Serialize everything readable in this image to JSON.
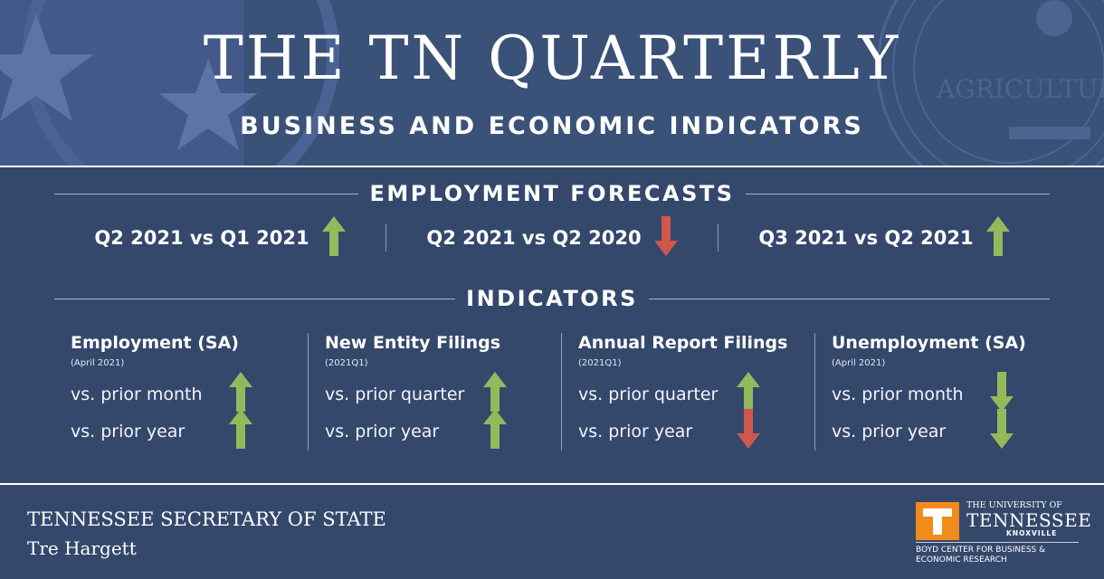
{
  "header": {
    "title": "THE TN QUARTERLY",
    "subtitle": "BUSINESS AND ECONOMIC INDICATORS",
    "seal_text": "AGRICULTURE"
  },
  "forecasts": {
    "heading": "EMPLOYMENT FORECASTS",
    "items": [
      {
        "label": "Q2 2021 vs Q1 2021",
        "direction": "up"
      },
      {
        "label": "Q2 2021 vs Q2 2020",
        "direction": "down"
      },
      {
        "label": "Q3 2021 vs Q2 2021",
        "direction": "up"
      }
    ]
  },
  "indicators": {
    "heading": "INDICATORS",
    "items": [
      {
        "title": "Employment (SA)",
        "date": "(April 2021)",
        "rows": [
          {
            "label": "vs. prior month",
            "direction": "up"
          },
          {
            "label": "vs. prior year",
            "direction": "up"
          }
        ]
      },
      {
        "title": "New Entity Filings",
        "date": "(2021Q1)",
        "rows": [
          {
            "label": "vs. prior quarter",
            "direction": "up"
          },
          {
            "label": "vs. prior year",
            "direction": "up"
          }
        ]
      },
      {
        "title": "Annual Report Filings",
        "date": "(2021Q1)",
        "rows": [
          {
            "label": "vs. prior quarter",
            "direction": "up"
          },
          {
            "label": "vs. prior year",
            "direction": "down"
          }
        ]
      },
      {
        "title": "Unemployment (SA)",
        "date": "(April 2021)",
        "rows": [
          {
            "label": "vs. prior month",
            "direction": "down"
          },
          {
            "label": "vs. prior year",
            "direction": "down"
          }
        ]
      }
    ]
  },
  "footer": {
    "office": "TENNESSEE SECRETARY OF STATE",
    "name": "Tre Hargett",
    "university_line1": "THE UNIVERSITY OF",
    "university_line2": "TENNESSEE",
    "university_line3": "KNOXVILLE",
    "center_line1": "BOYD CENTER FOR BUSINESS &",
    "center_line2": "ECONOMIC RESEARCH",
    "logo_letter": "T"
  },
  "colors": {
    "background": "#34486c",
    "header": "#3a5178",
    "up_arrow": "#93b95a",
    "down_arrow": "#d0574c",
    "ut_orange": "#f38b1c"
  }
}
